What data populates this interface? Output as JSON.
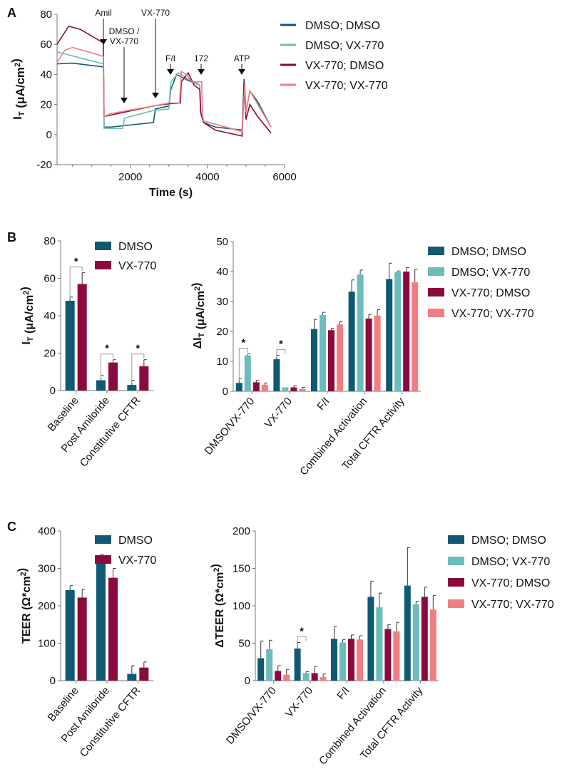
{
  "colors": {
    "dmso_dmso": "#0f5a72",
    "dmso_vx": "#6cbcbc",
    "vx_dmso": "#8b0a3e",
    "vx_vx": "#f07f82"
  },
  "chart_data": [
    {
      "id": "A",
      "panel_label": "A",
      "type": "line",
      "xlabel": "Time (s)",
      "ylabel": "I_T (μA/cm²)",
      "xlim": [
        100,
        6000
      ],
      "ylim": [
        -20,
        80
      ],
      "xticks": [
        2000,
        4000,
        6000
      ],
      "yticks": [
        -20,
        0,
        20,
        40,
        60,
        80
      ],
      "grid": false,
      "legend": "right",
      "annotations": [
        {
          "text": "Amil",
          "x": 1300
        },
        {
          "text": "DMSO /",
          "text2": "VX-770",
          "x": 1800
        },
        {
          "text": "VX-770",
          "x": 2650
        },
        {
          "text": "F/I",
          "x": 3050
        },
        {
          "text": "172",
          "x": 3850
        },
        {
          "text": "ATP",
          "x": 4950
        }
      ],
      "series": [
        {
          "name": "DMSO; DMSO",
          "color": "#0f5a72",
          "points": [
            [
              100,
              47
            ],
            [
              500,
              47.5
            ],
            [
              1300,
              45
            ],
            [
              1320,
              5
            ],
            [
              1500,
              5
            ],
            [
              2600,
              8
            ],
            [
              2650,
              17
            ],
            [
              3000,
              19
            ],
            [
              3050,
              30
            ],
            [
              3200,
              40
            ],
            [
              3500,
              36
            ],
            [
              3800,
              33
            ],
            [
              3820,
              15
            ],
            [
              3900,
              8
            ],
            [
              4200,
              5
            ],
            [
              4900,
              3
            ],
            [
              4950,
              37
            ],
            [
              5000,
              15
            ],
            [
              5100,
              29
            ],
            [
              5300,
              22
            ],
            [
              5650,
              5
            ]
          ]
        },
        {
          "name": "DMSO; VX-770",
          "color": "#6cbcbc",
          "points": [
            [
              100,
              55
            ],
            [
              1300,
              47
            ],
            [
              1320,
              4
            ],
            [
              1800,
              4
            ],
            [
              1850,
              11
            ],
            [
              2600,
              16
            ],
            [
              3000,
              17
            ],
            [
              3050,
              35
            ],
            [
              3250,
              41
            ],
            [
              3500,
              37
            ],
            [
              3800,
              33
            ],
            [
              3820,
              15
            ],
            [
              3900,
              9
            ],
            [
              4900,
              2
            ],
            [
              4950,
              32
            ],
            [
              5000,
              15
            ],
            [
              5100,
              29
            ],
            [
              5650,
              5
            ]
          ]
        },
        {
          "name": "VX-770; DMSO",
          "color": "#8b0a3e",
          "points": [
            [
              100,
              60
            ],
            [
              400,
              72
            ],
            [
              700,
              70
            ],
            [
              1300,
              61
            ],
            [
              1320,
              12
            ],
            [
              1500,
              13
            ],
            [
              2600,
              19
            ],
            [
              3000,
              20.5
            ],
            [
              3300,
              21
            ],
            [
              3320,
              35
            ],
            [
              3500,
              41
            ],
            [
              3650,
              33
            ],
            [
              3800,
              30
            ],
            [
              3830,
              14
            ],
            [
              3900,
              8
            ],
            [
              4200,
              3
            ],
            [
              4900,
              -1
            ],
            [
              4950,
              34
            ],
            [
              5000,
              10
            ],
            [
              5100,
              20
            ],
            [
              5300,
              12
            ],
            [
              5650,
              1
            ]
          ]
        },
        {
          "name": "VX-770; VX-770",
          "color": "#f07f82",
          "points": [
            [
              100,
              48
            ],
            [
              300,
              56
            ],
            [
              500,
              58
            ],
            [
              1300,
              52
            ],
            [
              1320,
              12
            ],
            [
              1500,
              14
            ],
            [
              2600,
              19
            ],
            [
              3000,
              21
            ],
            [
              3280,
              21
            ],
            [
              3320,
              42
            ],
            [
              3450,
              40
            ],
            [
              3600,
              35
            ],
            [
              3850,
              35
            ],
            [
              3870,
              13
            ],
            [
              3900,
              9
            ],
            [
              4900,
              2
            ],
            [
              4970,
              34
            ],
            [
              5000,
              15
            ],
            [
              5100,
              29
            ],
            [
              5650,
              5
            ]
          ]
        }
      ]
    },
    {
      "id": "B1",
      "panel_label": "B",
      "type": "bar",
      "ylabel": "I_T (μA/cm²)",
      "ylim": [
        0,
        80
      ],
      "yticks": [
        0,
        20,
        40,
        60,
        80
      ],
      "grid": false,
      "legend": "top-right",
      "categories": [
        "Baseline",
        "Post Amiloride",
        "Constitutive CFTR"
      ],
      "series": [
        {
          "name": "DMSO",
          "color": "#0f5a72",
          "values": [
            48,
            5.5,
            3
          ],
          "errors": [
            2,
            2.5,
            2.5
          ]
        },
        {
          "name": "VX-770",
          "color": "#8b0a3e",
          "values": [
            57,
            15,
            13
          ],
          "errors": [
            6,
            1.5,
            3.5
          ]
        }
      ],
      "significance": [
        {
          "group": 0,
          "bars": [
            0,
            1
          ],
          "label": "*"
        },
        {
          "group": 1,
          "bars": [
            0,
            1
          ],
          "label": "*"
        },
        {
          "group": 2,
          "bars": [
            0,
            1
          ],
          "label": "*"
        }
      ]
    },
    {
      "id": "B2",
      "type": "bar",
      "ylabel": "ΔI_T (μA/cm²)",
      "ylim": [
        0,
        50
      ],
      "yticks": [
        0,
        10,
        20,
        30,
        40,
        50
      ],
      "grid": false,
      "legend": "right",
      "categories": [
        "DMSO/VX-770",
        "VX-770",
        "F/I",
        "Combined Activation",
        "Total CFTR Activity"
      ],
      "series": [
        {
          "name": "DMSO; DMSO",
          "color": "#0f5a72",
          "values": [
            2.8,
            10.7,
            20.8,
            33.3,
            37.5
          ],
          "errors": [
            1.6,
            1.3,
            3.2,
            3.9,
            5.3
          ]
        },
        {
          "name": "DMSO; VX-770",
          "color": "#6cbcbc",
          "values": [
            12,
            1.3,
            25.5,
            39,
            39.8
          ],
          "errors": [
            0.5,
            0,
            0.9,
            1.5,
            0.4
          ]
        },
        {
          "name": "VX-770; DMSO",
          "color": "#8b0a3e",
          "values": [
            3,
            1.3,
            20.4,
            24.3,
            40
          ],
          "errors": [
            0.6,
            0.6,
            0.6,
            1.4,
            1.3
          ]
        },
        {
          "name": "VX-770; VX-770",
          "color": "#f07f82",
          "values": [
            2.2,
            0.7,
            22.3,
            25.3,
            36.4
          ],
          "errors": [
            0.6,
            0.6,
            1.0,
            2.0,
            4.4
          ]
        }
      ],
      "significance": [
        {
          "group": 0,
          "bars": [
            0,
            1
          ],
          "label": "*"
        },
        {
          "group": 1,
          "bars": [
            0,
            1
          ],
          "label": "*"
        }
      ]
    },
    {
      "id": "C1",
      "panel_label": "C",
      "type": "bar",
      "ylabel": "TEER (Ω*cm²)",
      "ylim": [
        0,
        400
      ],
      "yticks": [
        0,
        100,
        200,
        300,
        400
      ],
      "grid": false,
      "legend": "top-right",
      "categories": [
        "Baseline",
        "Post Amiloride",
        "Constitutive CFTR"
      ],
      "series": [
        {
          "name": "DMSO",
          "color": "#0f5a72",
          "values": [
            242,
            313,
            18
          ],
          "errors": [
            12,
            25,
            22
          ]
        },
        {
          "name": "VX-770",
          "color": "#8b0a3e",
          "values": [
            222,
            275,
            35
          ],
          "errors": [
            22,
            25,
            15
          ]
        }
      ],
      "significance": []
    },
    {
      "id": "C2",
      "type": "bar",
      "ylabel": "ΔTEER (Ω*cm²)",
      "ylim": [
        0,
        200
      ],
      "yticks": [
        0,
        50,
        100,
        150,
        200
      ],
      "grid": false,
      "legend": "right",
      "categories": [
        "DMSO/VX-770",
        "VX-770",
        "F/I",
        "Combined Activation",
        "Total CFTR Activity"
      ],
      "series": [
        {
          "name": "DMSO; DMSO",
          "color": "#0f5a72",
          "values": [
            30,
            43,
            56,
            112,
            127
          ],
          "errors": [
            23,
            8,
            16,
            21,
            51
          ]
        },
        {
          "name": "DMSO; VX-770",
          "color": "#6cbcbc",
          "values": [
            42,
            10,
            51,
            98,
            102
          ],
          "errors": [
            12,
            2,
            4,
            19,
            4
          ]
        },
        {
          "name": "VX-770; DMSO",
          "color": "#8b0a3e",
          "values": [
            13,
            10,
            56,
            69,
            112
          ],
          "errors": [
            7,
            9,
            5,
            6,
            13
          ]
        },
        {
          "name": "VX-770; VX-770",
          "color": "#f07f82",
          "values": [
            8,
            5,
            55,
            66,
            95
          ],
          "errors": [
            7,
            4,
            5,
            12,
            19
          ]
        }
      ],
      "significance": [
        {
          "group": 1,
          "bars": [
            0,
            1
          ],
          "label": "*"
        }
      ]
    }
  ]
}
